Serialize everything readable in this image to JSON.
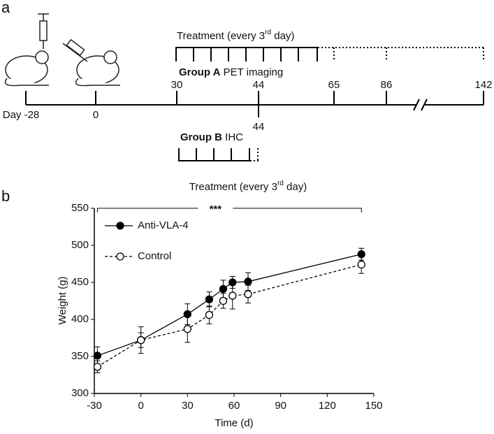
{
  "panel_a": {
    "label": "a",
    "treatment": [
      "Treatment (every 3",
      "rd",
      " day)"
    ],
    "group_a": {
      "name": "Group A",
      "label": "PET imaging"
    },
    "group_b": {
      "name": "Group B",
      "label": "IHC"
    },
    "days_above": [
      "30",
      "44",
      "65",
      "86",
      "142"
    ],
    "days_below": [
      "Day -28",
      "0",
      "44"
    ]
  },
  "chart_data": {
    "type": "line",
    "label": "b",
    "title": [
      "Treatment (every 3",
      "rd",
      " day)"
    ],
    "significance": "***",
    "x_label": "Time (d)",
    "y_label": "Weight (g)",
    "x": [
      -28,
      0,
      30,
      44,
      53,
      59,
      69,
      142
    ],
    "series": [
      {
        "name": "Anti-VLA-4",
        "color": "#000000",
        "filled": true,
        "dashed": false,
        "values": [
          351,
          372,
          407,
          427,
          441,
          450,
          451,
          488
        ],
        "errors": [
          12,
          10,
          14,
          10,
          12,
          8,
          12,
          8
        ]
      },
      {
        "name": "Control",
        "color": "#000000",
        "filled": false,
        "dashed": true,
        "values": [
          336,
          372,
          387,
          406,
          425,
          432,
          434,
          474
        ],
        "errors": [
          8,
          18,
          18,
          12,
          10,
          18,
          12,
          12
        ]
      }
    ],
    "xlim": [
      -30,
      150
    ],
    "xticks": [
      -30,
      0,
      30,
      60,
      90,
      120,
      150
    ],
    "ylim": [
      300,
      550
    ],
    "yticks": [
      300,
      350,
      400,
      450,
      500,
      550
    ],
    "grid": false,
    "legend": "top-left"
  }
}
